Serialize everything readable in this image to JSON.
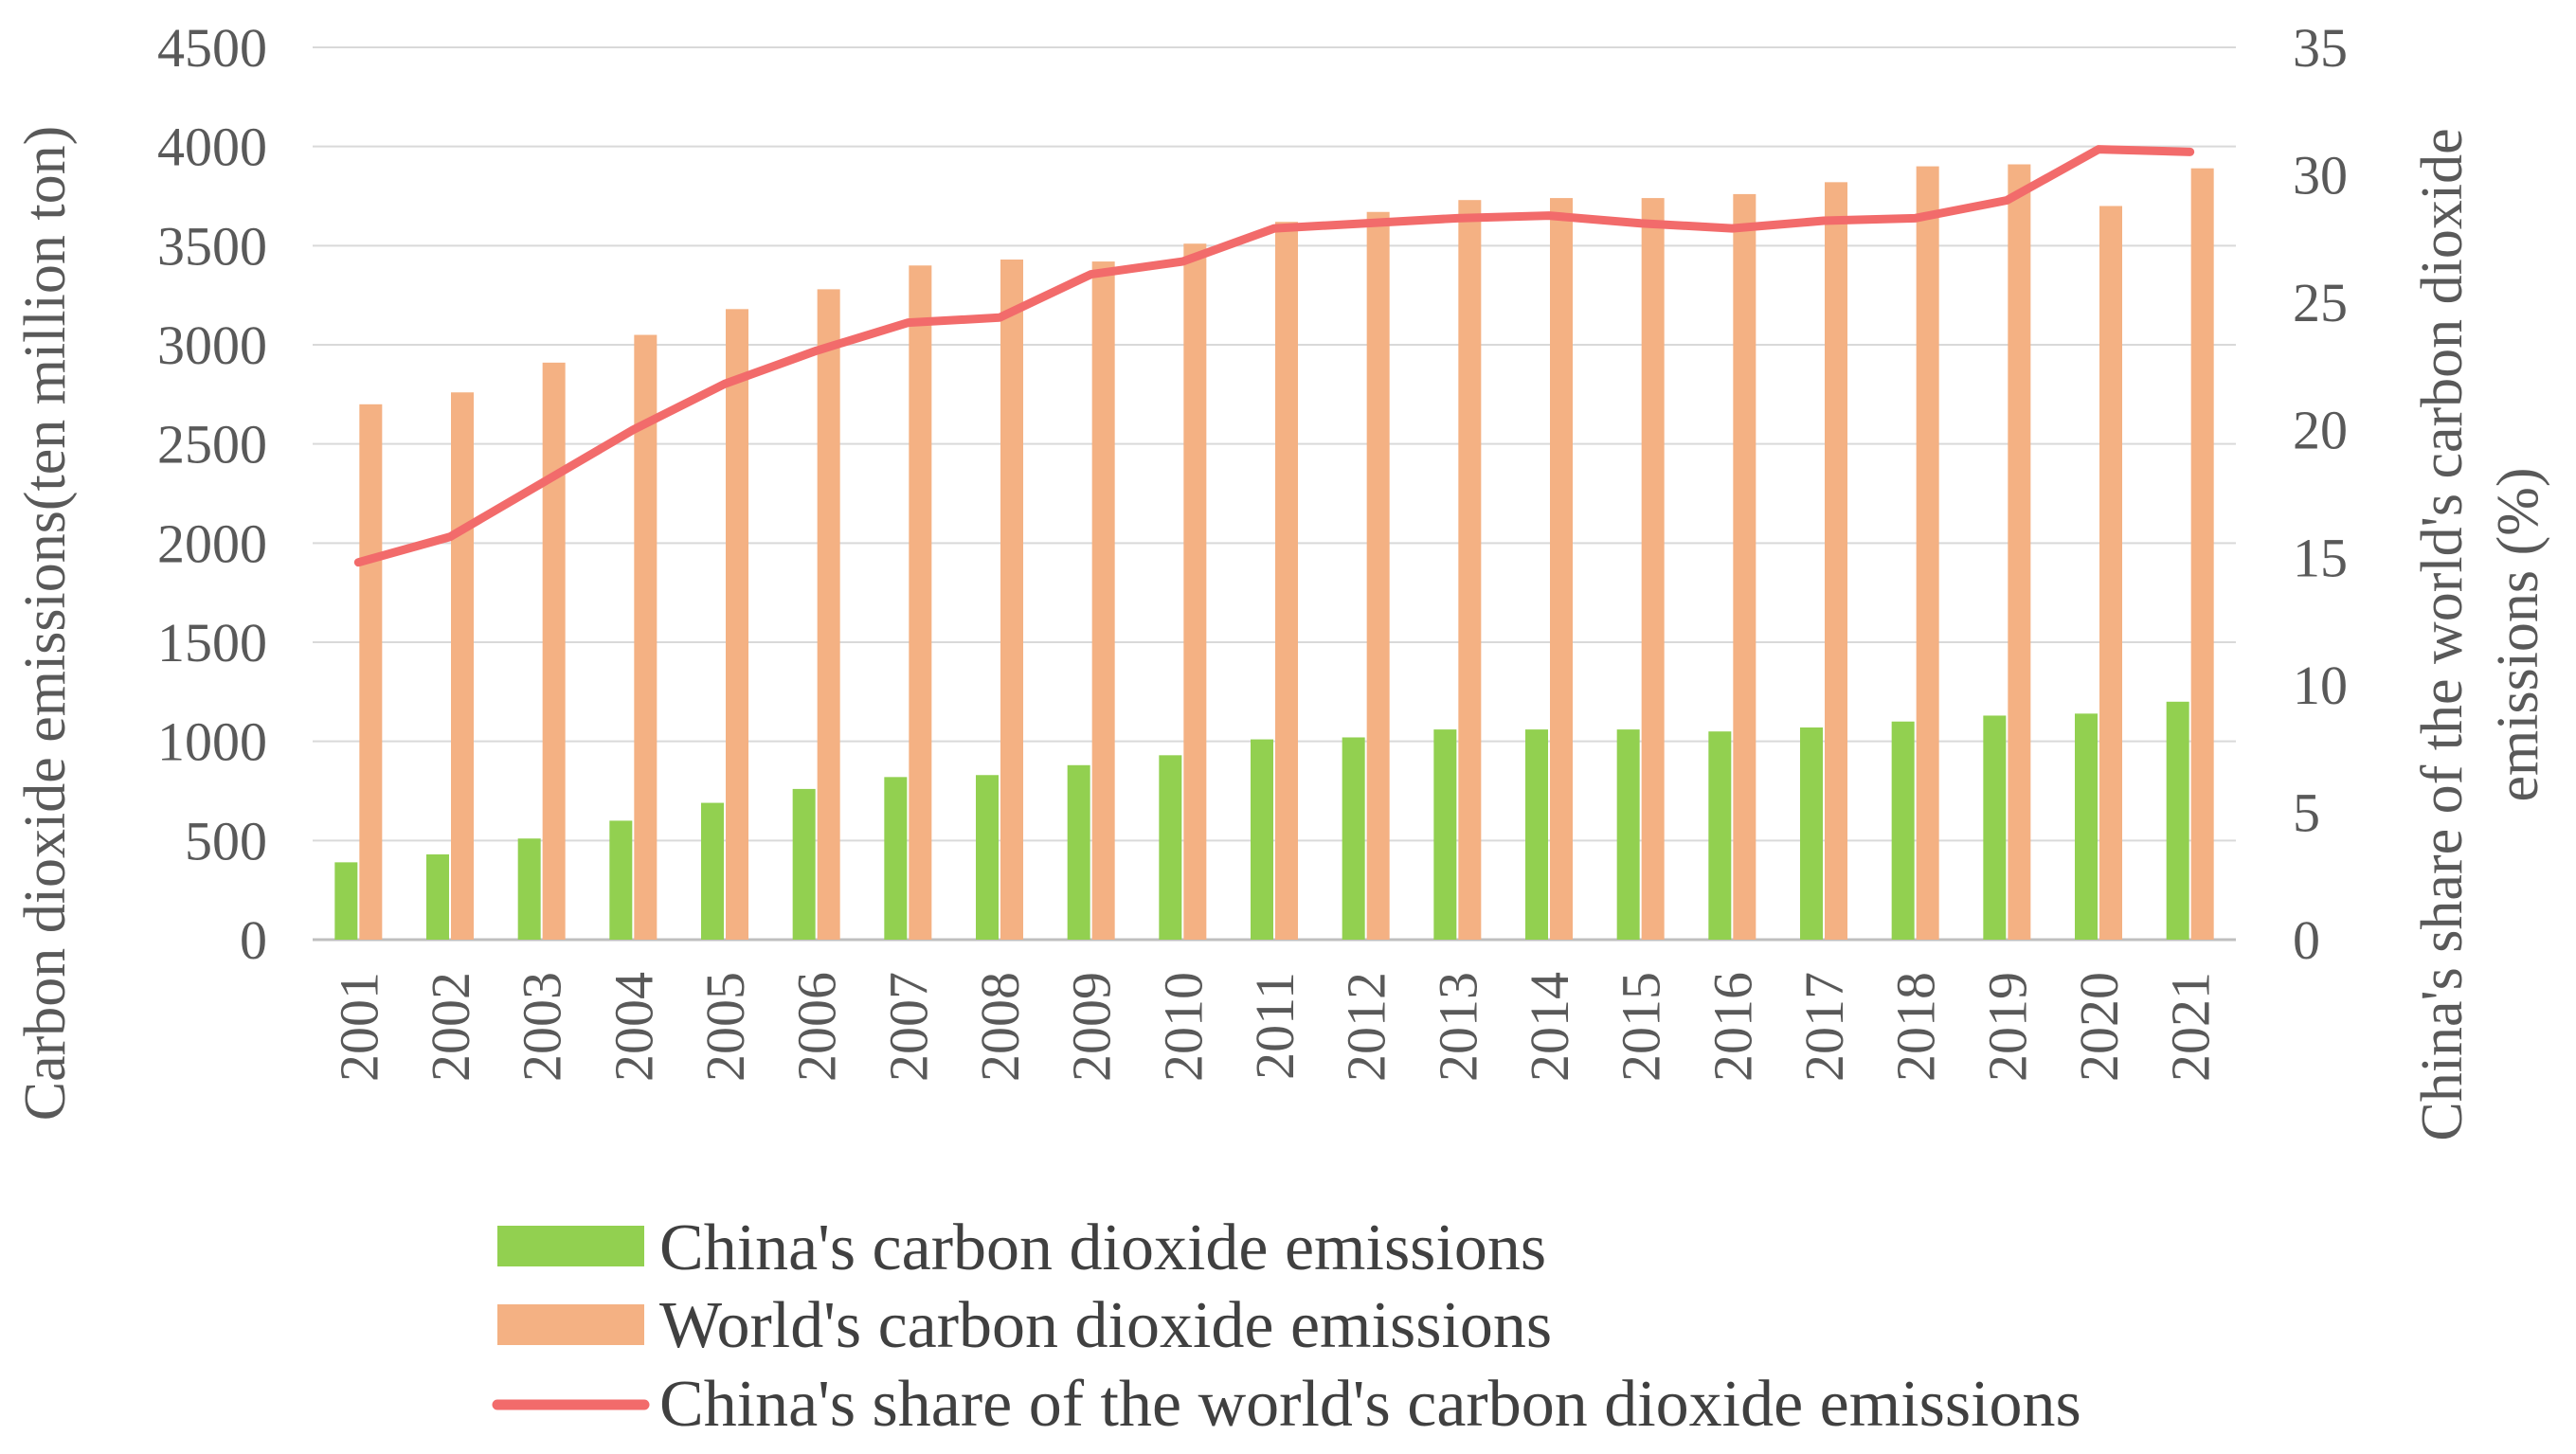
{
  "chart_data": {
    "type": "bar+line",
    "categories": [
      "2001",
      "2002",
      "2003",
      "2004",
      "2005",
      "2006",
      "2007",
      "2008",
      "2009",
      "2010",
      "2011",
      "2012",
      "2013",
      "2014",
      "2015",
      "2016",
      "2017",
      "2018",
      "2019",
      "2020",
      "2021"
    ],
    "series": [
      {
        "name": "China's carbon dioxide emissions",
        "type": "bar",
        "axis": "left",
        "color": "#92d050",
        "values": [
          390,
          430,
          510,
          600,
          690,
          760,
          820,
          830,
          880,
          930,
          1010,
          1020,
          1060,
          1060,
          1060,
          1050,
          1070,
          1100,
          1130,
          1140,
          1200
        ]
      },
      {
        "name": "World's carbon dioxide emissions",
        "type": "bar",
        "axis": "right-of-pair",
        "color": "#f4b183",
        "values": [
          2700,
          2760,
          2910,
          3050,
          3180,
          3280,
          3400,
          3430,
          3420,
          3510,
          3620,
          3670,
          3730,
          3740,
          3740,
          3760,
          3820,
          3900,
          3910,
          3700,
          3890
        ]
      },
      {
        "name": "China's share of the world's carbon dioxide emissions",
        "type": "line",
        "axis": "secondary",
        "color": "#f26b6b",
        "values": [
          14.8,
          15.8,
          17.9,
          20.0,
          21.8,
          23.1,
          24.2,
          24.4,
          26.1,
          26.6,
          27.9,
          28.1,
          28.3,
          28.4,
          28.1,
          27.9,
          28.2,
          28.3,
          29.0,
          31.0,
          30.9
        ]
      }
    ],
    "y_left": {
      "label": "Carbon dioxide emissions(ten million ton)",
      "ylim": [
        0,
        4500
      ],
      "ticks": [
        "0",
        "500",
        "1000",
        "1500",
        "2000",
        "2500",
        "3000",
        "3500",
        "4000",
        "4500"
      ]
    },
    "y_right": {
      "label_line1": "China's share of the world's carbon dioxide",
      "label_line2": "emissions (%)",
      "ylim": [
        0,
        35
      ],
      "ticks": [
        "0",
        "5",
        "10",
        "15",
        "20",
        "25",
        "30",
        "35"
      ]
    },
    "grid": true,
    "legend_position": "bottom-center"
  }
}
